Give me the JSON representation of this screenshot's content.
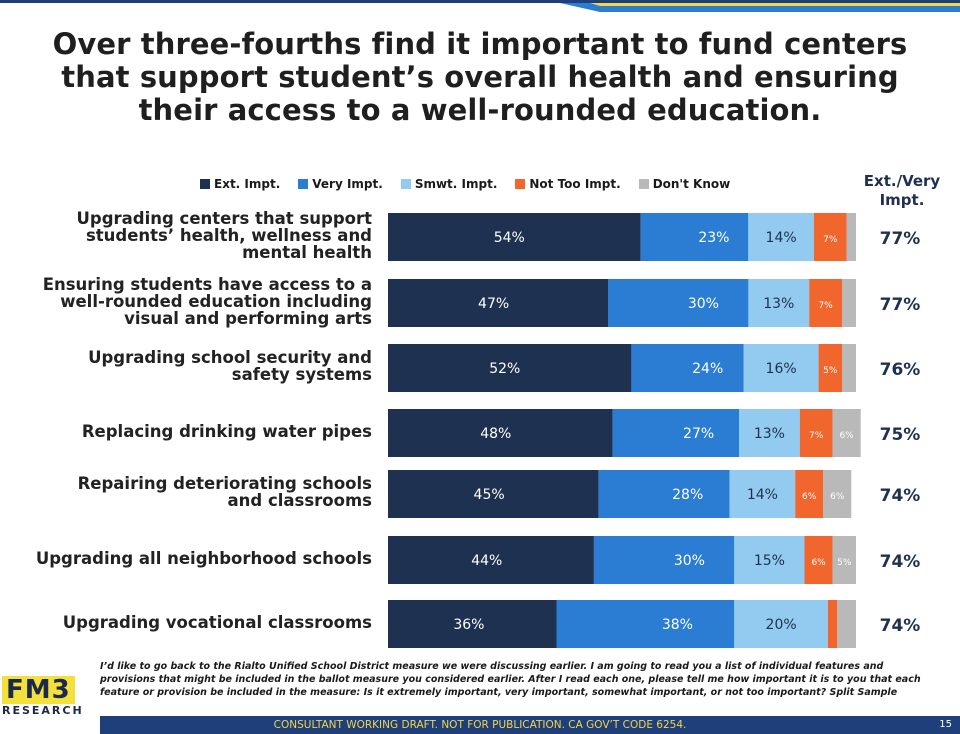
{
  "title_lines": [
    "Over three-fourths find it important to fund centers",
    "that support student’s overall health and ensuring",
    "their access to a well-rounded education."
  ],
  "legend": [
    "Ext. Impt.",
    "Very Impt.",
    "Smwt. Impt.",
    "Not Too Impt.",
    "Don't Know"
  ],
  "column_header": [
    "Ext./Very",
    "Impt."
  ],
  "colors": {
    "ext": "#1e3150",
    "very": "#2a7dd2",
    "smwt": "#92cbef",
    "not_too": "#f0662d",
    "dont_know": "#b9b9b9"
  },
  "chart_data": {
    "type": "bar",
    "orientation": "horizontal",
    "stacked": true,
    "categories": [
      "Upgrading centers that support students’ health, wellness and mental health",
      "Ensuring students have access to a well-rounded education including visual and performing arts",
      "Upgrading school security and safety systems",
      "Replacing drinking water pipes",
      "Repairing deteriorating schools and classrooms",
      "Upgrading all neighborhood schools",
      "Upgrading vocational classrooms"
    ],
    "category_label_lines": [
      [
        "Upgrading centers that support",
        "students’ health, wellness and",
        "mental health"
      ],
      [
        "Ensuring students have access to a",
        "well-rounded education including",
        "visual and performing arts"
      ],
      [
        "Upgrading school security and",
        "safety systems"
      ],
      [
        "Replacing drinking water pipes"
      ],
      [
        "Repairing deteriorating schools",
        "and classrooms"
      ],
      [
        "Upgrading all neighborhood schools"
      ],
      [
        "Upgrading vocational classrooms"
      ]
    ],
    "series": [
      {
        "name": "Ext. Impt.",
        "values": [
          54,
          47,
          52,
          48,
          45,
          44,
          36
        ]
      },
      {
        "name": "Very Impt.",
        "values": [
          23,
          30,
          24,
          27,
          28,
          30,
          38
        ]
      },
      {
        "name": "Smwt. Impt.",
        "values": [
          14,
          13,
          16,
          13,
          14,
          15,
          20
        ]
      },
      {
        "name": "Not Too Impt.",
        "values": [
          7,
          7,
          5,
          7,
          6,
          6,
          2
        ]
      },
      {
        "name": "Don't Know",
        "values": [
          2,
          3,
          3,
          6,
          6,
          5,
          4
        ]
      }
    ],
    "data_labels": [
      [
        "54%",
        "23%",
        "14%",
        "7%",
        ""
      ],
      [
        "47%",
        "30%",
        "13%",
        "7%",
        ""
      ],
      [
        "52%",
        "24%",
        "16%",
        "5%",
        ""
      ],
      [
        "48%",
        "27%",
        "13%",
        "7%",
        "6%"
      ],
      [
        "45%",
        "28%",
        "14%",
        "6%",
        "6%"
      ],
      [
        "44%",
        "30%",
        "15%",
        "6%",
        "5%"
      ],
      [
        "36%",
        "38%",
        "20%",
        "",
        ""
      ]
    ],
    "ext_very_totals": [
      "77%",
      "77%",
      "76%",
      "75%",
      "74%",
      "74%",
      "74%"
    ],
    "xlim": [
      0,
      100
    ]
  },
  "footnote": "I’d like to go back to the Rialto Unified School District measure we were discussing earlier. I am going to read you a list of individual features and provisions that might be included in the ballot measure you considered earlier. After I read each one, please tell me how important it is to you that each feature or provision be included in the measure: Is it extremely important, very important, somewhat important, or not too important? Split Sample",
  "logo": {
    "main": "FM3",
    "sub": "RESEARCH"
  },
  "bottom_bar": "CONSULTANT WORKING DRAFT. NOT FOR PUBLICATION. CA GOV’T CODE 6254.",
  "page_number": "15"
}
